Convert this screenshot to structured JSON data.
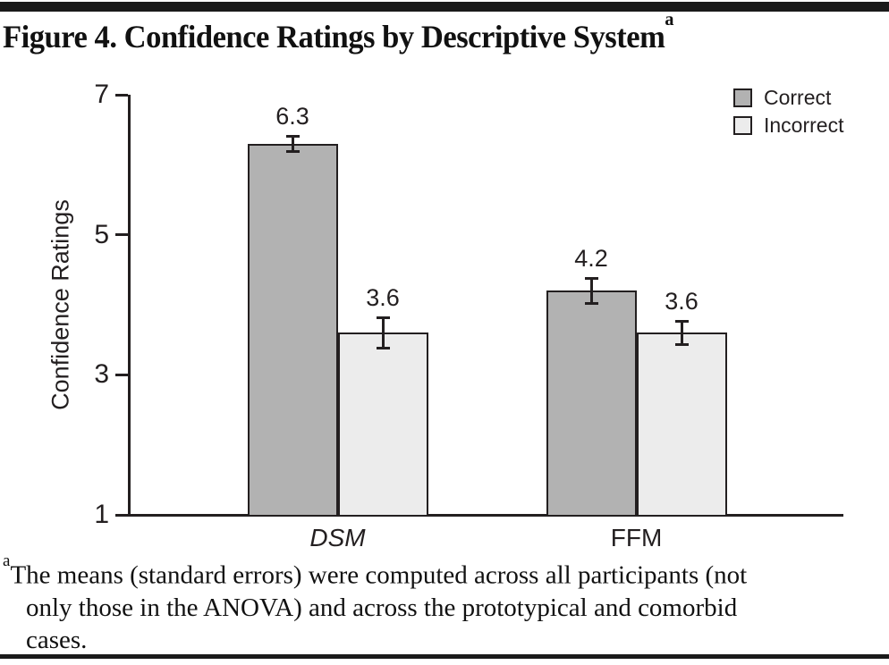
{
  "page": {
    "title": {
      "text": "Figure 4. Confidence Ratings by Descriptive System",
      "sup": "a"
    },
    "footnote": {
      "sup": "a",
      "line1": "The means (standard errors) were computed across all participants (not",
      "line2": "only those in the ANOVA) and across the prototypical and comorbid",
      "line3": "cases."
    }
  },
  "chart_data": {
    "type": "bar",
    "title": "Figure 4. Confidence Ratings by Descriptive System",
    "ylabel": "Confidence Ratings",
    "xlabel": "",
    "ylim": [
      1,
      7
    ],
    "yticks": [
      1,
      3,
      5,
      7
    ],
    "grid": false,
    "legend_position": "top-right",
    "categories": [
      "DSM",
      "FFM"
    ],
    "categories_italic": [
      true,
      false
    ],
    "series": [
      {
        "name": "Correct",
        "color": "#b2b2b2",
        "values": [
          6.3,
          4.2
        ],
        "errors": [
          0.11,
          0.18
        ],
        "labels": [
          "6.3",
          "4.2"
        ]
      },
      {
        "name": "Incorrect",
        "color": "#ececec",
        "values": [
          3.6,
          3.6
        ],
        "errors": [
          0.22,
          0.17
        ],
        "labels": [
          "3.6",
          "3.6"
        ]
      }
    ],
    "error_bars": true
  },
  "style": {
    "bar_outline": "#231f20",
    "axis_color": "#231f20",
    "rule_color": "#1a1a1a"
  }
}
